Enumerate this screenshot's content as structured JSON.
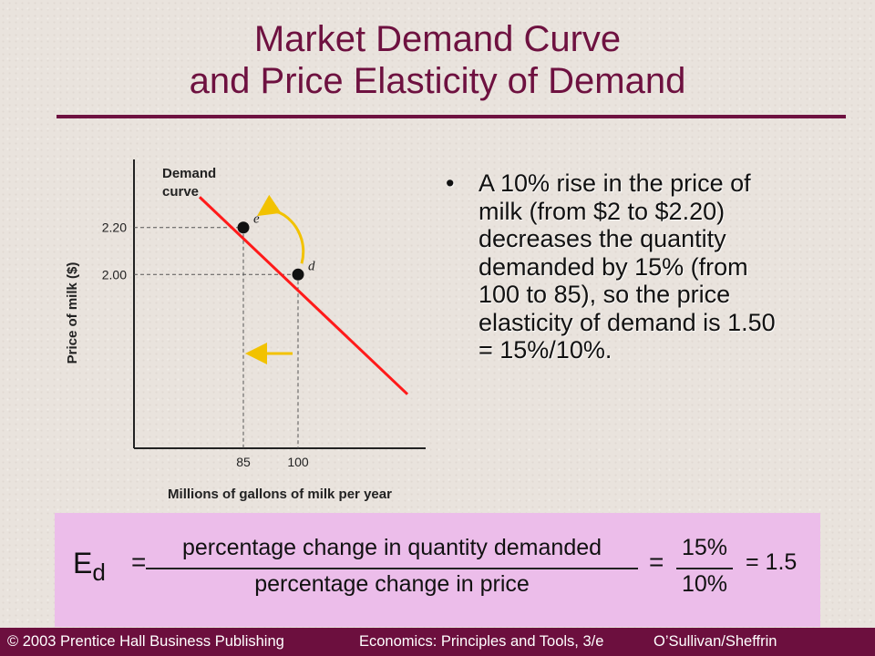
{
  "title": {
    "line1": "Market Demand Curve",
    "line2": "and Price Elasticity of Demand"
  },
  "bullet": {
    "marker": "•",
    "text": "A 10% rise in the price of milk (from $2 to $2.20) decreases the quantity demanded by 15% (from 100 to 85), so the price elasticity of demand is 1.50 = 15%/10%."
  },
  "chart_data": {
    "type": "line",
    "title": "",
    "xlabel": "Millions of gallons of milk per year",
    "ylabel": "Price of milk ($)",
    "curve_label": [
      "Demand",
      "curve"
    ],
    "series": [
      {
        "name": "Demand curve",
        "x": [
          73,
          130
        ],
        "y": [
          2.33,
          1.49
        ]
      }
    ],
    "points": [
      {
        "label": "e",
        "x": 85,
        "y": 2.2
      },
      {
        "label": "d",
        "x": 100,
        "y": 2.0
      }
    ],
    "x_ticks": [
      85,
      100
    ],
    "y_ticks": [
      {
        "value": 2.0,
        "label": "2.00"
      },
      {
        "value": 2.2,
        "label": "2.20"
      }
    ],
    "xlim": [
      55,
      135
    ],
    "ylim": [
      1.26,
      2.49
    ],
    "curve_color": "#ff1a1a",
    "arrow_color": "#f2c200",
    "grid": false
  },
  "formula": {
    "lhs_symbol": "E",
    "lhs_subscript": "d",
    "equals1": "=",
    "numerator": "percentage change in quantity demanded",
    "denominator": "percentage change in price",
    "equals2": "=",
    "frac_numerator": "15%",
    "frac_denominator": "10%",
    "result": "= 1.5",
    "background": "#ecbdea"
  },
  "footer": {
    "left": "© 2003 Prentice Hall Business Publishing",
    "center": "Economics: Principles and Tools, 3/e",
    "right": "O’Sullivan/Sheffrin",
    "background": "#6c0f3e"
  }
}
